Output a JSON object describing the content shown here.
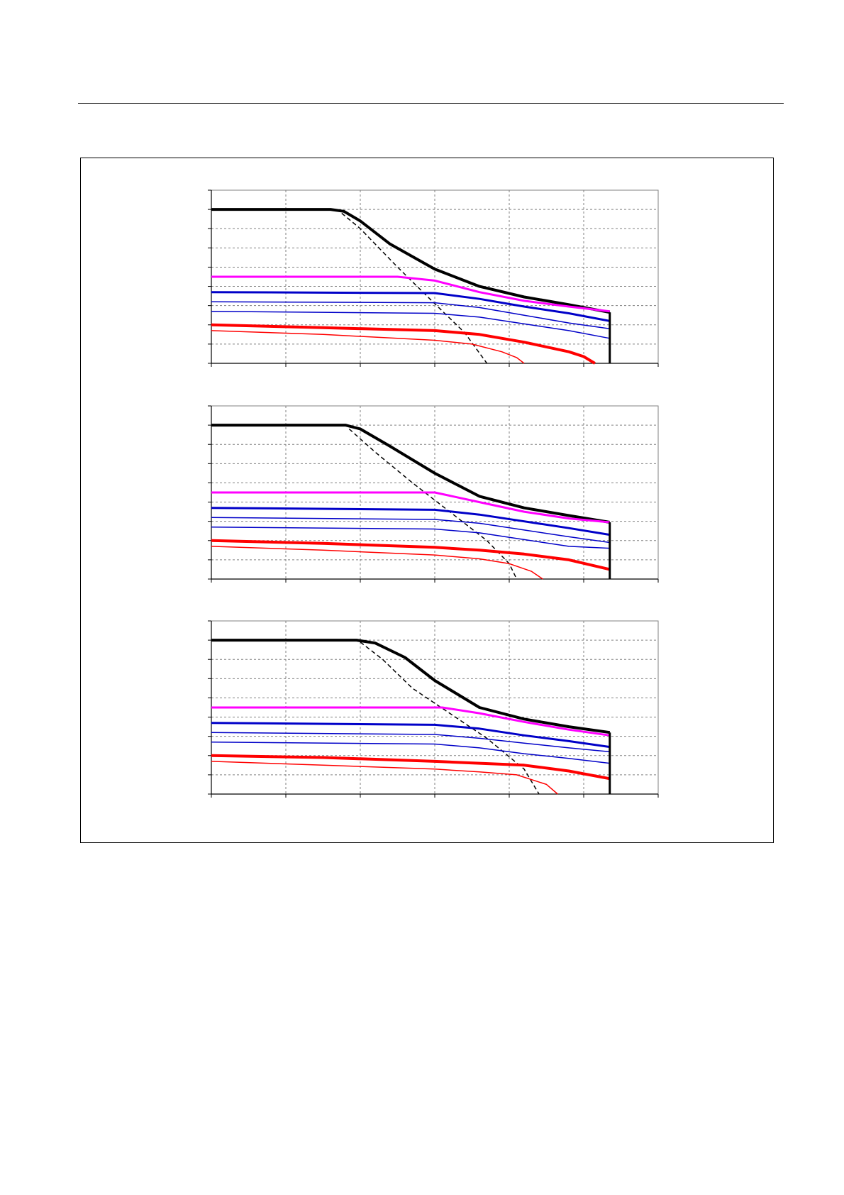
{
  "colors": {
    "black": "#000000",
    "magenta": "#ff00ff",
    "blue": "#0000c8",
    "red": "#ff0000",
    "grid": "#808080"
  },
  "chart_data": [
    {
      "type": "line",
      "title": "",
      "xlabel": "",
      "ylabel": "",
      "xlim": [
        0,
        6
      ],
      "ylim": [
        0,
        9
      ],
      "grid": true,
      "series": [
        {
          "color": "#000000",
          "width": 4,
          "dash": false,
          "x": [
            0,
            1.6,
            1.78,
            2.0,
            2.4,
            3.0,
            3.6,
            4.2,
            4.8,
            5.35
          ],
          "y": [
            8.0,
            8.0,
            7.9,
            7.4,
            6.2,
            4.9,
            4.0,
            3.45,
            3.05,
            2.65
          ]
        },
        {
          "color": "#000000",
          "width": 1.5,
          "dash": true,
          "x": [
            1.75,
            2.0,
            2.5,
            3.0,
            3.4,
            3.7
          ],
          "y": [
            7.8,
            7.0,
            5.0,
            3.1,
            1.6,
            0
          ]
        },
        {
          "color": "#ff00ff",
          "width": 3,
          "dash": false,
          "x": [
            0,
            2.5,
            3.0,
            3.6,
            4.2,
            4.8,
            5.35
          ],
          "y": [
            4.5,
            4.5,
            4.3,
            3.7,
            3.25,
            2.95,
            2.7
          ]
        },
        {
          "color": "#0000c8",
          "width": 3,
          "dash": false,
          "x": [
            0,
            3.0,
            3.6,
            4.2,
            4.8,
            5.35
          ],
          "y": [
            3.7,
            3.65,
            3.35,
            2.95,
            2.6,
            2.2
          ]
        },
        {
          "color": "#0000c8",
          "width": 1.5,
          "dash": false,
          "x": [
            0,
            3.0,
            3.6,
            4.2,
            4.8,
            5.35
          ],
          "y": [
            3.2,
            3.15,
            2.9,
            2.5,
            2.1,
            1.8
          ]
        },
        {
          "color": "#0000c8",
          "width": 1.5,
          "dash": false,
          "x": [
            0,
            3.0,
            3.6,
            4.2,
            4.8,
            5.35
          ],
          "y": [
            2.7,
            2.6,
            2.4,
            2.05,
            1.7,
            1.3
          ]
        },
        {
          "color": "#ff0000",
          "width": 4,
          "dash": false,
          "x": [
            0,
            1.5,
            3.0,
            3.6,
            4.2,
            4.8,
            5.0,
            5.15
          ],
          "y": [
            2.0,
            1.85,
            1.7,
            1.5,
            1.1,
            0.6,
            0.35,
            0
          ]
        },
        {
          "color": "#ff0000",
          "width": 1.5,
          "dash": false,
          "x": [
            0,
            1.5,
            3.0,
            3.5,
            3.9,
            4.1,
            4.2
          ],
          "y": [
            1.7,
            1.5,
            1.2,
            1.0,
            0.6,
            0.3,
            0
          ]
        }
      ],
      "vlines": [
        {
          "x": 5.35,
          "y0": 0,
          "y1": 2.65,
          "color": "#000000",
          "width": 3
        }
      ]
    },
    {
      "type": "line",
      "title": "",
      "xlabel": "",
      "ylabel": "",
      "xlim": [
        0,
        6
      ],
      "ylim": [
        0,
        9
      ],
      "grid": true,
      "series": [
        {
          "color": "#000000",
          "width": 4,
          "dash": false,
          "x": [
            0,
            1.8,
            2.0,
            2.4,
            3.0,
            3.6,
            4.2,
            4.8,
            5.35
          ],
          "y": [
            8.0,
            8.0,
            7.8,
            6.9,
            5.5,
            4.3,
            3.7,
            3.3,
            2.95
          ]
        },
        {
          "color": "#000000",
          "width": 1.5,
          "dash": true,
          "x": [
            1.85,
            2.2,
            2.7,
            3.2,
            3.7,
            4.0,
            4.1
          ],
          "y": [
            7.8,
            6.6,
            5.0,
            3.5,
            2.0,
            0.8,
            0
          ]
        },
        {
          "color": "#ff00ff",
          "width": 3,
          "dash": false,
          "x": [
            0,
            3.0,
            3.6,
            4.2,
            4.8,
            5.35
          ],
          "y": [
            4.5,
            4.5,
            4.0,
            3.5,
            3.15,
            2.95
          ]
        },
        {
          "color": "#0000c8",
          "width": 3,
          "dash": false,
          "x": [
            0,
            3.0,
            3.6,
            4.2,
            4.8,
            5.35
          ],
          "y": [
            3.7,
            3.6,
            3.35,
            3.0,
            2.65,
            2.3
          ]
        },
        {
          "color": "#0000c8",
          "width": 1.5,
          "dash": false,
          "x": [
            0,
            3.0,
            3.6,
            4.2,
            4.8,
            5.35
          ],
          "y": [
            3.2,
            3.1,
            2.9,
            2.55,
            2.2,
            1.9
          ]
        },
        {
          "color": "#0000c8",
          "width": 1.5,
          "dash": false,
          "x": [
            0,
            3.0,
            3.6,
            4.2,
            4.8,
            5.35
          ],
          "y": [
            2.7,
            2.6,
            2.4,
            2.05,
            1.7,
            1.6
          ]
        },
        {
          "color": "#ff0000",
          "width": 4,
          "dash": false,
          "x": [
            0,
            1.5,
            3.0,
            3.6,
            4.2,
            4.8,
            5.35
          ],
          "y": [
            2.0,
            1.85,
            1.65,
            1.5,
            1.3,
            1.0,
            0.5
          ]
        },
        {
          "color": "#ff0000",
          "width": 1.5,
          "dash": false,
          "x": [
            0,
            1.5,
            3.0,
            3.6,
            4.0,
            4.3,
            4.45
          ],
          "y": [
            1.7,
            1.5,
            1.25,
            1.05,
            0.8,
            0.4,
            0
          ]
        }
      ],
      "vlines": [
        {
          "x": 5.35,
          "y0": 0,
          "y1": 2.95,
          "color": "#000000",
          "width": 3
        }
      ]
    },
    {
      "type": "line",
      "title": "",
      "xlabel": "",
      "ylabel": "",
      "xlim": [
        0,
        6
      ],
      "ylim": [
        0,
        9
      ],
      "grid": true,
      "series": [
        {
          "color": "#000000",
          "width": 4,
          "dash": false,
          "x": [
            0,
            1.95,
            2.2,
            2.6,
            3.0,
            3.6,
            4.2,
            4.8,
            5.35
          ],
          "y": [
            8.0,
            8.0,
            7.85,
            7.1,
            5.9,
            4.5,
            3.9,
            3.5,
            3.2
          ]
        },
        {
          "color": "#000000",
          "width": 1.5,
          "dash": true,
          "x": [
            2.0,
            2.3,
            2.7,
            3.2,
            3.7,
            4.2,
            4.4
          ],
          "y": [
            7.9,
            7.0,
            5.5,
            4.2,
            2.9,
            1.3,
            0
          ]
        },
        {
          "color": "#ff00ff",
          "width": 3,
          "dash": false,
          "x": [
            0,
            3.1,
            3.6,
            4.2,
            4.8,
            5.35
          ],
          "y": [
            4.5,
            4.5,
            4.2,
            3.75,
            3.35,
            3.05
          ]
        },
        {
          "color": "#0000c8",
          "width": 3,
          "dash": false,
          "x": [
            0,
            3.0,
            3.6,
            4.2,
            4.8,
            5.35
          ],
          "y": [
            3.7,
            3.6,
            3.4,
            3.05,
            2.75,
            2.45
          ]
        },
        {
          "color": "#0000c8",
          "width": 1.5,
          "dash": false,
          "x": [
            0,
            3.0,
            3.6,
            4.2,
            4.8,
            5.35
          ],
          "y": [
            3.2,
            3.1,
            2.9,
            2.65,
            2.4,
            2.2
          ]
        },
        {
          "color": "#0000c8",
          "width": 1.5,
          "dash": false,
          "x": [
            0,
            3.0,
            3.6,
            4.2,
            4.8,
            5.35
          ],
          "y": [
            2.7,
            2.6,
            2.4,
            2.1,
            1.85,
            1.6
          ]
        },
        {
          "color": "#ff0000",
          "width": 4,
          "dash": false,
          "x": [
            0,
            1.5,
            3.0,
            3.6,
            4.2,
            4.8,
            5.35
          ],
          "y": [
            2.0,
            1.9,
            1.7,
            1.6,
            1.5,
            1.2,
            0.8
          ]
        },
        {
          "color": "#ff0000",
          "width": 1.5,
          "dash": false,
          "x": [
            0,
            1.5,
            3.0,
            3.6,
            4.1,
            4.5,
            4.65
          ],
          "y": [
            1.7,
            1.5,
            1.3,
            1.15,
            1.0,
            0.5,
            0
          ]
        }
      ],
      "vlines": [
        {
          "x": 5.35,
          "y0": 0,
          "y1": 3.2,
          "color": "#000000",
          "width": 3
        }
      ]
    }
  ]
}
